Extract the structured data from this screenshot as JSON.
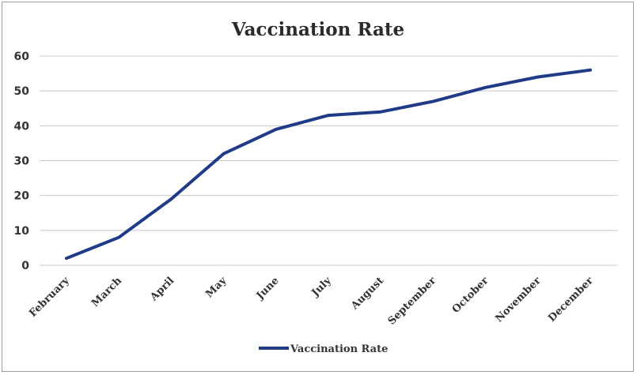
{
  "chart_data": {
    "type": "line",
    "title": "Vaccination Rate",
    "xlabel": "",
    "ylabel": "",
    "categories": [
      "February",
      "March",
      "April",
      "May",
      "June",
      "July",
      "August",
      "September",
      "October",
      "November",
      "December"
    ],
    "series": [
      {
        "name": "Vaccination Rate",
        "values": [
          2,
          8,
          19,
          32,
          39,
          43,
          44,
          47,
          51,
          54,
          56
        ],
        "color": "#1f3a87"
      }
    ],
    "yticks": [
      "0",
      "10",
      "20",
      "30",
      "40",
      "50",
      "60"
    ],
    "ylim": [
      0,
      60
    ],
    "grid": true,
    "legend_position": "bottom"
  }
}
